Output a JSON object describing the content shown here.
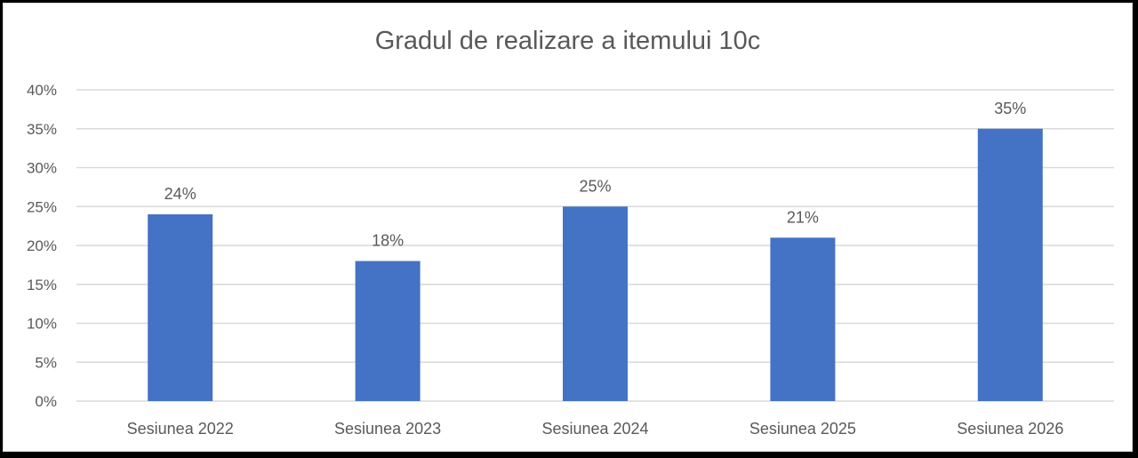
{
  "chart_data": {
    "type": "bar",
    "title": "Gradul de realizare a itemului 10c",
    "xlabel": "",
    "ylabel": "",
    "categories": [
      "Sesiunea 2022",
      "Sesiunea 2023",
      "Sesiunea 2024",
      "Sesiunea 2025",
      "Sesiunea 2026"
    ],
    "values": [
      24,
      18,
      25,
      21,
      35
    ],
    "data_labels": [
      "24%",
      "18%",
      "25%",
      "21%",
      "35%"
    ],
    "ylim": [
      0,
      40
    ],
    "y_ticks": [
      0,
      5,
      10,
      15,
      20,
      25,
      30,
      35,
      40
    ],
    "y_tick_labels": [
      "0%",
      "5%",
      "10%",
      "15%",
      "20%",
      "25%",
      "30%",
      "35%",
      "40%"
    ],
    "grid": true,
    "legend": "none",
    "colors": {
      "bar": "#4472c4",
      "gridline": "#d9d9d9",
      "text": "#595959"
    }
  }
}
